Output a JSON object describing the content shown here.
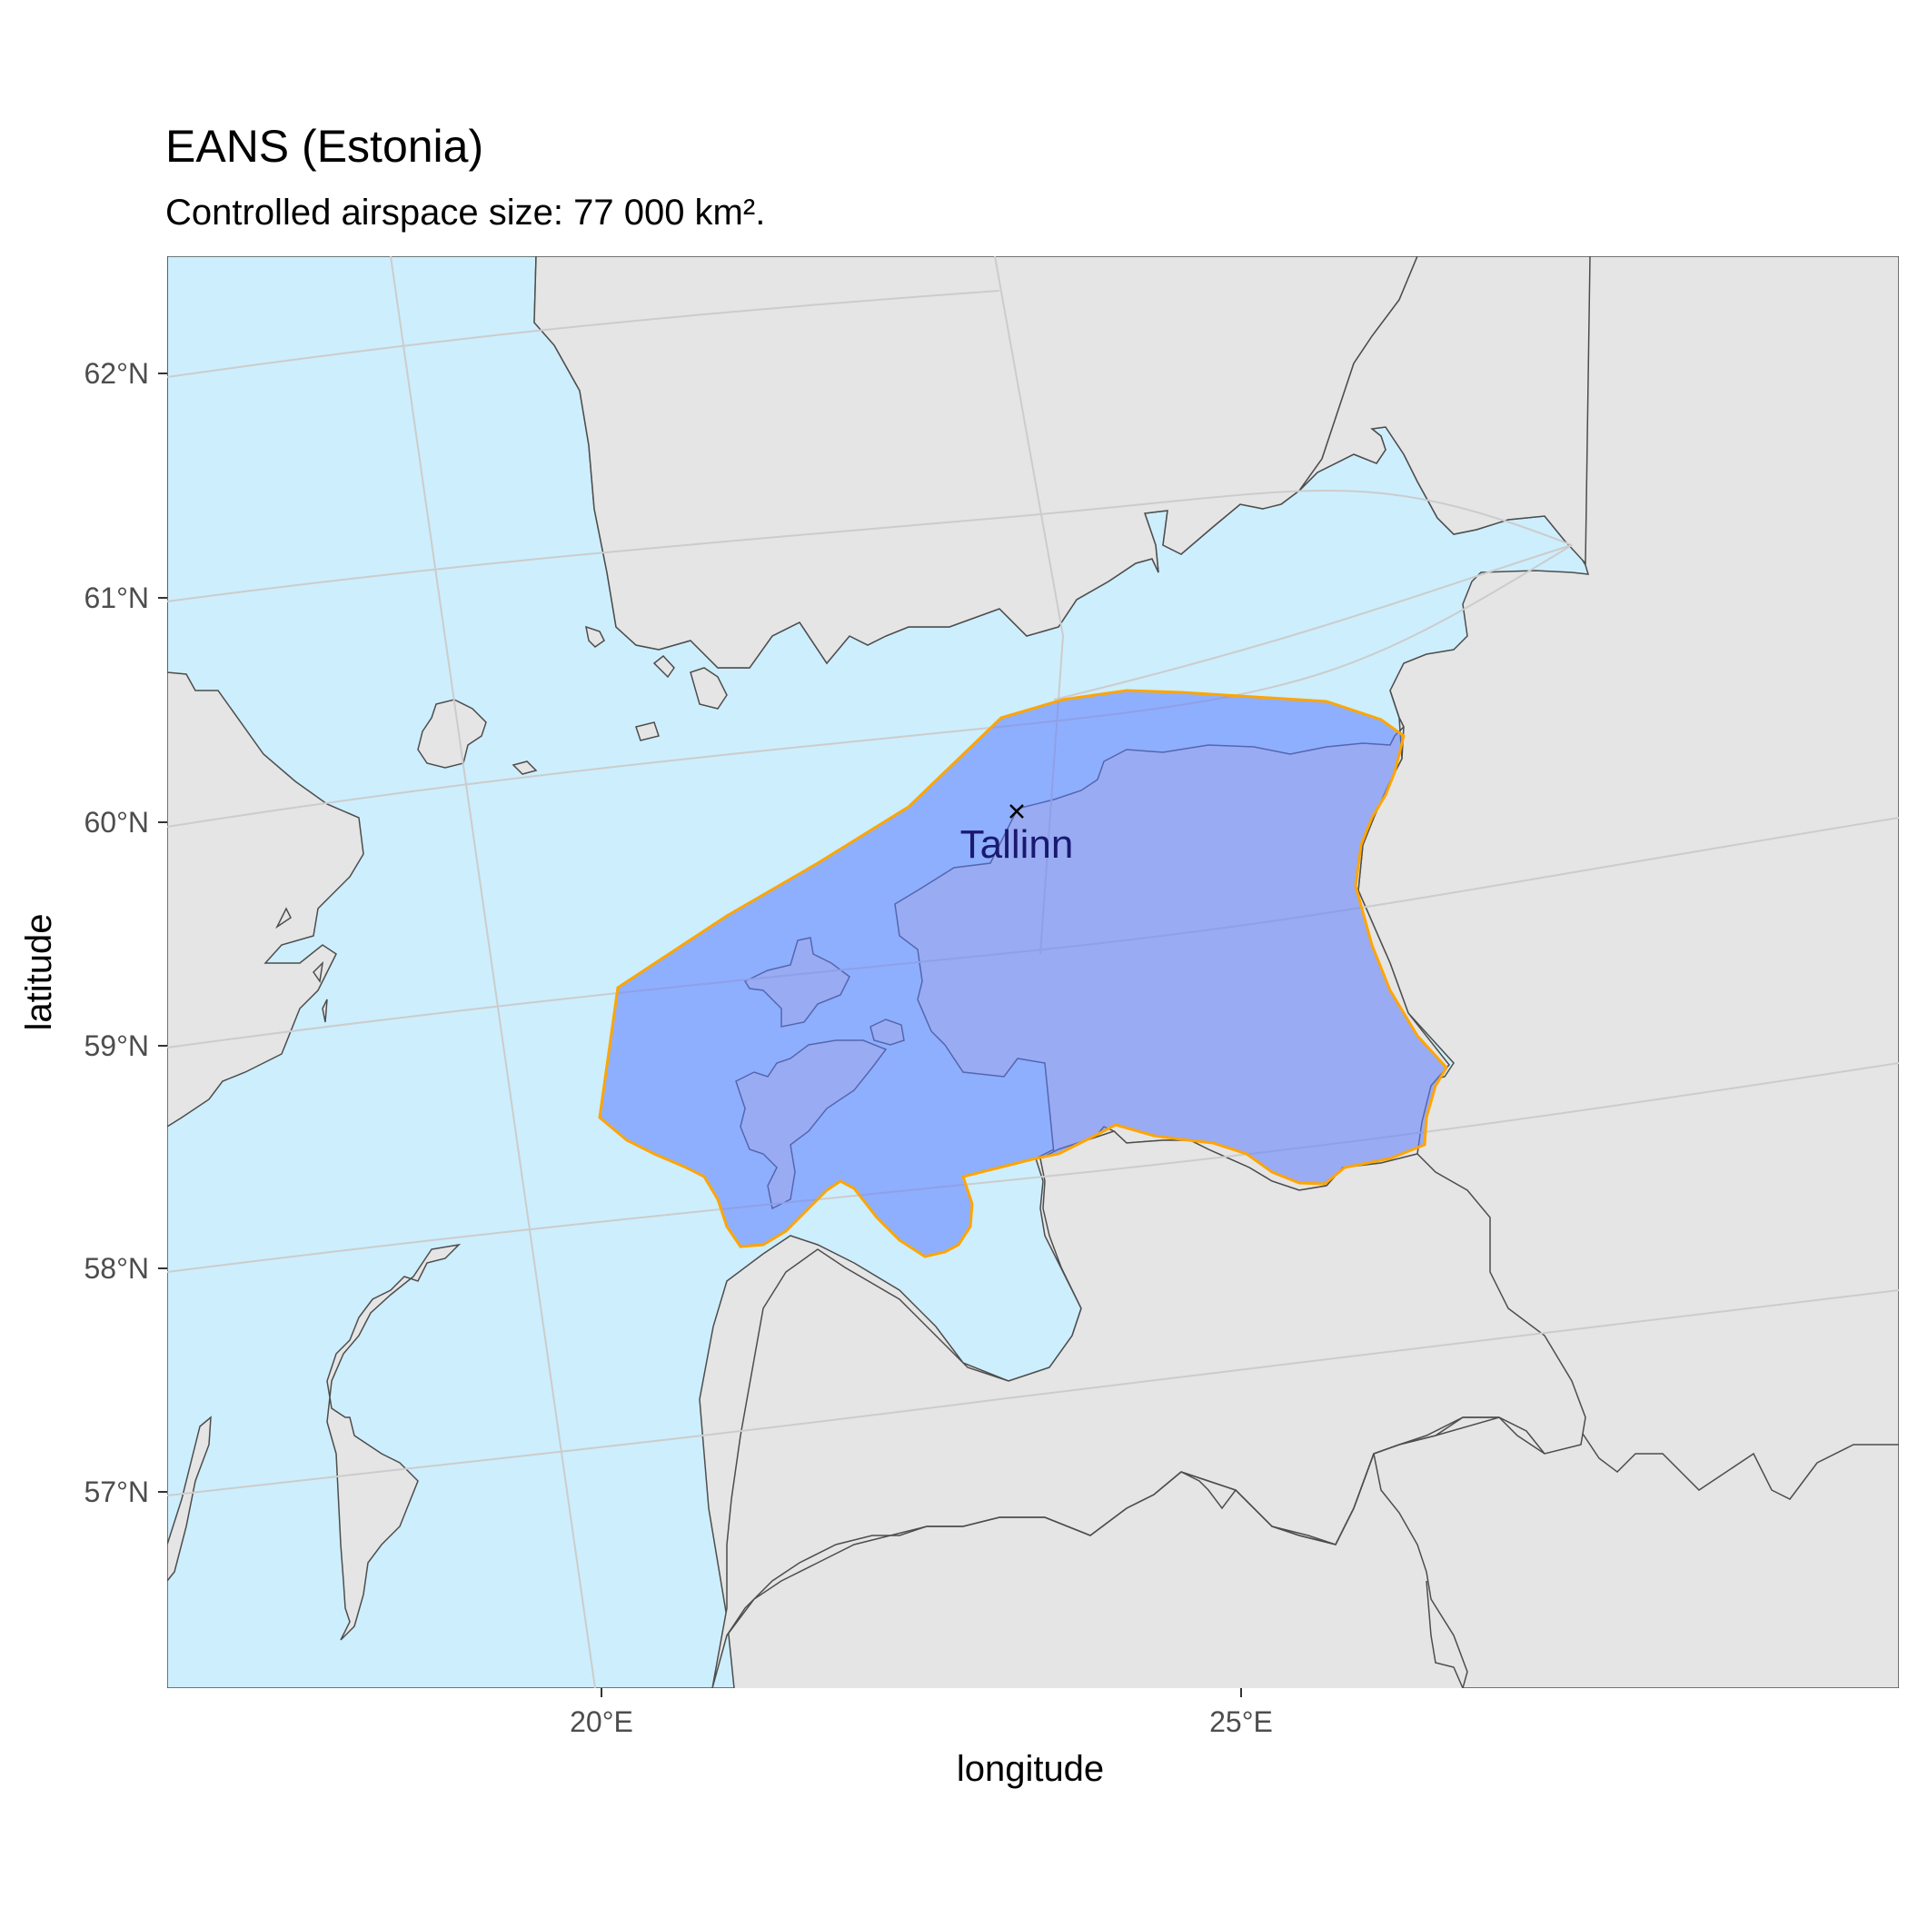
{
  "title": "EANS (Estonia)",
  "subtitle": "Controlled airspace size: 77 000 km².",
  "axes": {
    "x_title": "longitude",
    "y_title": "latitude",
    "x_ticks": [
      "20°E",
      "25°E"
    ],
    "y_ticks": [
      "62°N",
      "61°N",
      "60°N",
      "59°N",
      "58°N",
      "57°N"
    ]
  },
  "city": {
    "name": "Tallinn",
    "marker": "×"
  },
  "colors": {
    "sea": "#cdeefd",
    "land": "#e5e5e5",
    "border": "#4d4d4d",
    "airspace_fill": "#5b7cff",
    "airspace_outline": "#ffa500",
    "graticule": "#cccccc"
  }
}
